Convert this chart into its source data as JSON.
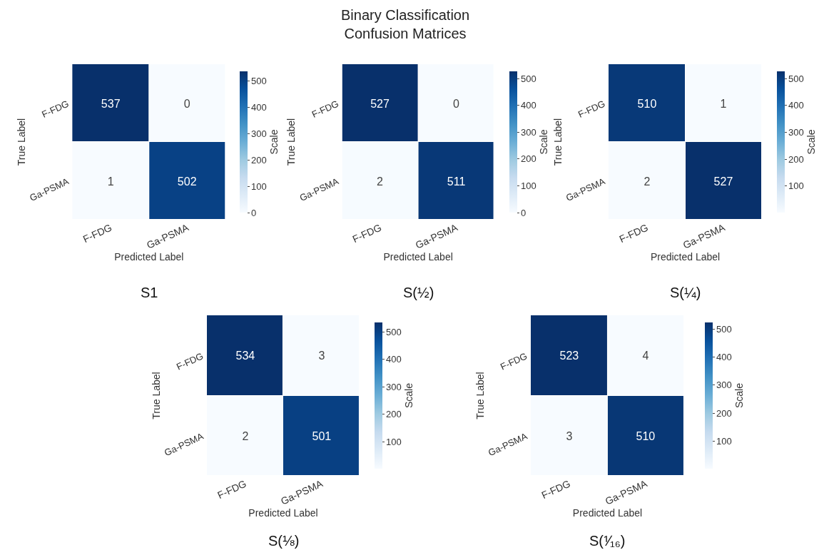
{
  "chart_data": [
    {
      "type": "heatmap",
      "categories": [
        "F-FDG",
        "Ga-PSMA"
      ],
      "y_categories": [
        "F-FDG",
        "Ga-PSMA"
      ],
      "xlabel": "Predicted Label",
      "ylabel": "True Label",
      "clabel": "Scale",
      "cells": [
        [
          537,
          0
        ],
        [
          1,
          502
        ]
      ],
      "clim": [
        0,
        537
      ],
      "cticks": [
        0,
        100,
        200,
        300,
        400,
        500
      ],
      "data_labels": true,
      "annotations": [
        "S1"
      ]
    },
    {
      "type": "heatmap",
      "categories": [
        "F-FDG",
        "Ga-PSMA"
      ],
      "y_categories": [
        "F-FDG",
        "Ga-PSMA"
      ],
      "xlabel": "Predicted Label",
      "ylabel": "True Label",
      "clabel": "Scale",
      "title": "Binary Classification\nConfusion Matrices",
      "cells": [
        [
          527,
          0
        ],
        [
          2,
          511
        ]
      ],
      "clim": [
        0,
        527
      ],
      "cticks": [
        0,
        100,
        200,
        300,
        400,
        500
      ],
      "data_labels": true,
      "annotations": [
        "S(½)"
      ]
    },
    {
      "type": "heatmap",
      "categories": [
        "F-FDG",
        "Ga-PSMA"
      ],
      "y_categories": [
        "F-FDG",
        "Ga-PSMA"
      ],
      "xlabel": "Predicted Label",
      "ylabel": "True Label",
      "clabel": "Scale",
      "cells": [
        [
          510,
          1
        ],
        [
          2,
          527
        ]
      ],
      "clim": [
        1,
        527
      ],
      "cticks": [
        100,
        200,
        300,
        400,
        500
      ],
      "data_labels": true,
      "annotations": [
        "S(¼)"
      ]
    },
    {
      "type": "heatmap",
      "categories": [
        "F-FDG",
        "Ga-PSMA"
      ],
      "y_categories": [
        "F-FDG",
        "Ga-PSMA"
      ],
      "xlabel": "Predicted Label",
      "ylabel": "True Label",
      "clabel": "Scale",
      "cells": [
        [
          534,
          3
        ],
        [
          2,
          501
        ]
      ],
      "clim": [
        2,
        534
      ],
      "cticks": [
        100,
        200,
        300,
        400,
        500
      ],
      "data_labels": true,
      "annotations": [
        "S(⅛)"
      ]
    },
    {
      "type": "heatmap",
      "categories": [
        "F-FDG",
        "Ga-PSMA"
      ],
      "y_categories": [
        "F-FDG",
        "Ga-PSMA"
      ],
      "xlabel": "Predicted Label",
      "ylabel": "True Label",
      "clabel": "Scale",
      "cells": [
        [
          523,
          4
        ],
        [
          3,
          510
        ]
      ],
      "clim": [
        3,
        523
      ],
      "cticks": [
        100,
        200,
        300,
        400,
        500
      ],
      "data_labels": true,
      "annotations": [
        "S(⅟₁₆)"
      ]
    }
  ]
}
